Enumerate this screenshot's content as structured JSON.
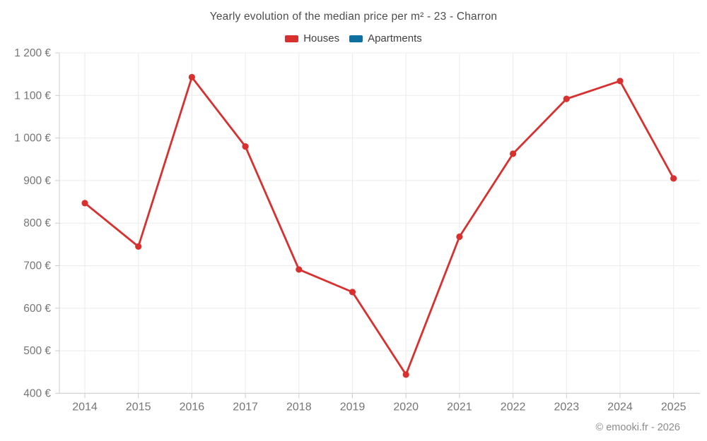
{
  "header": {
    "title": "Yearly evolution of the median price per m² - 23 - Charron"
  },
  "footer": {
    "credit": "© emooki.fr - 2026"
  },
  "colors": {
    "houses": "#d8302f",
    "apartments": "#0f6fa1",
    "grid": "#ebebeb",
    "axis": "#cccccc",
    "tick_label": "#757575",
    "title_text": "#4d4d4d",
    "legend_text": "#3f3f3f",
    "credit_text": "#8c8c8c"
  },
  "chart_data": {
    "type": "line",
    "title": "Yearly evolution of the median price per m² - 23 - Charron",
    "categories": [
      "2014",
      "2015",
      "2016",
      "2017",
      "2018",
      "2019",
      "2020",
      "2021",
      "2022",
      "2023",
      "2024",
      "2025"
    ],
    "series": [
      {
        "name": "Houses",
        "color": "#d8302f",
        "values": [
          847,
          745,
          1143,
          980,
          691,
          638,
          444,
          768,
          963,
          1092,
          1134,
          905
        ]
      },
      {
        "name": "Apartments",
        "color": "#0f6fa1",
        "values": []
      }
    ],
    "xlabel": "",
    "ylabel": "",
    "ylim": [
      400,
      1200
    ],
    "ytick_step": 100,
    "ytick_labels": [
      "400 €",
      "500 €",
      "600 €",
      "700 €",
      "800 €",
      "900 €",
      "1 000 €",
      "1 100 €",
      "1 200 €"
    ],
    "grid": true,
    "legend_position": "top",
    "marker": "circle",
    "unit": "€/m²"
  }
}
